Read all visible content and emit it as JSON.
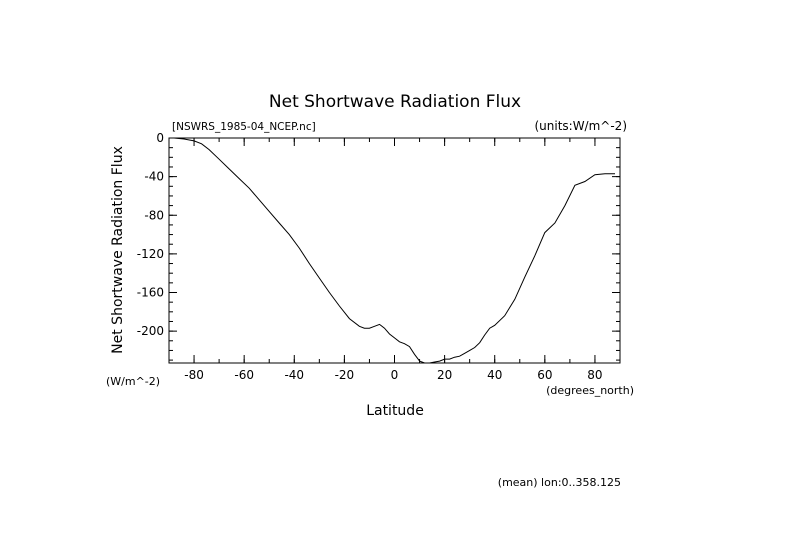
{
  "chart_data": {
    "type": "line",
    "title": "Net Shortwave Radiation Flux",
    "file_label": "[NSWRS_1985-04_NCEP.nc]",
    "units_label": "(units:W/m^-2)",
    "ylabel": "Net Shortwave Radiation Flux",
    "yunits": "(W/m^-2)",
    "xlabel": "Latitude",
    "xunits": "(degrees_north)",
    "footer": "(mean) lon:0..358.125",
    "xlim": [
      -90,
      90
    ],
    "ylim": [
      -233,
      0
    ],
    "x_ticks": [
      -80,
      -60,
      -40,
      -20,
      0,
      20,
      40,
      60,
      80
    ],
    "y_ticks": [
      0,
      -40,
      -80,
      -120,
      -160,
      -200
    ],
    "x_tick_labels": [
      "-80",
      "-60",
      "-40",
      "-20",
      "0",
      "20",
      "40",
      "60",
      "80"
    ],
    "y_tick_labels": [
      "0",
      "-40",
      "-80",
      "-120",
      "-160",
      "-200"
    ],
    "grid": false,
    "series": [
      {
        "x": [
          -88,
          -84,
          -80,
          -77,
          -74,
          -70,
          -66,
          -62,
          -58,
          -54,
          -50,
          -46,
          -42,
          -38,
          -34,
          -30,
          -26,
          -22,
          -18,
          -14,
          -12,
          -10,
          -8,
          -6,
          -4,
          -2,
          0,
          2,
          4,
          6,
          8,
          10,
          12,
          14,
          16,
          18,
          20,
          22,
          24,
          26,
          28,
          30,
          32,
          34,
          36,
          38,
          40,
          44,
          48,
          52,
          56,
          60,
          64,
          68,
          72,
          76,
          80,
          84,
          88
        ],
        "y": [
          0,
          -1,
          -3,
          -6,
          -12,
          -22,
          -32,
          -42,
          -52,
          -64,
          -76,
          -88,
          -100,
          -114,
          -130,
          -145,
          -160,
          -174,
          -187,
          -195,
          -197,
          -197,
          -195,
          -193,
          -197,
          -203,
          -207,
          -211,
          -213,
          -216,
          -224,
          -231,
          -233,
          -233,
          -232,
          -231,
          -229,
          -229,
          -227,
          -226,
          -223,
          -220,
          -217,
          -212,
          -204,
          -197,
          -194,
          -184,
          -167,
          -144,
          -122,
          -98,
          -88,
          -70,
          -49,
          -45,
          -38,
          -37,
          -37
        ]
      }
    ],
    "color": "#000000"
  }
}
